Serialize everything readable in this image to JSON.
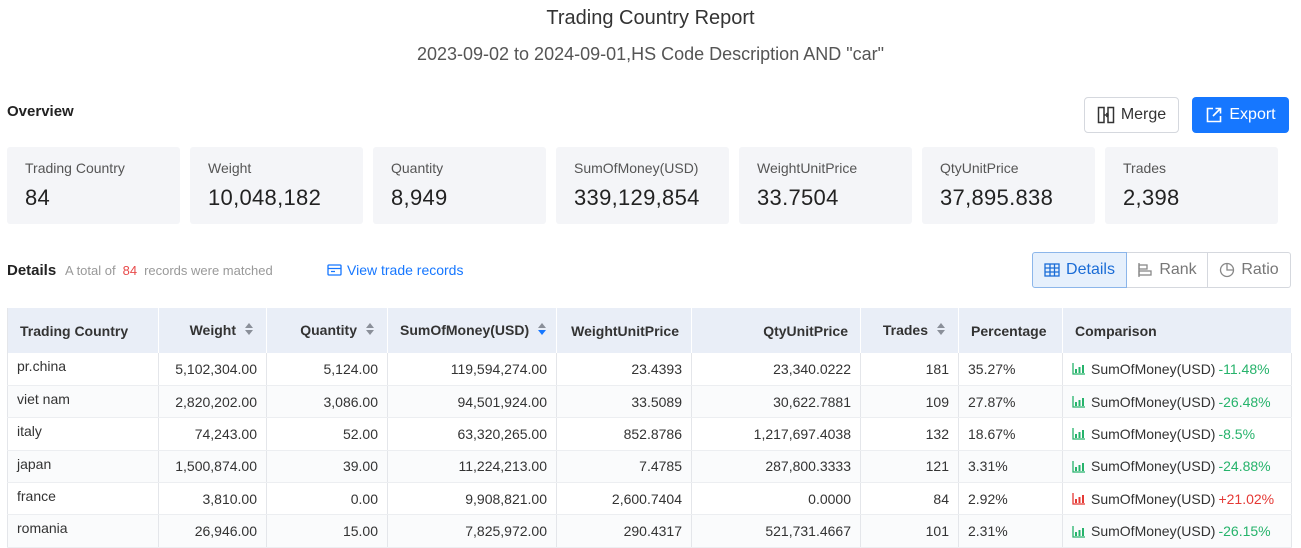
{
  "report": {
    "title": "Trading Country Report",
    "subtitle": "2023-09-02 to 2024-09-01,HS Code Description AND \"car\""
  },
  "overview": {
    "label": "Overview",
    "merge_label": "Merge",
    "export_label": "Export",
    "cards": [
      {
        "label": "Trading Country",
        "value": "84"
      },
      {
        "label": "Weight",
        "value": "10,048,182"
      },
      {
        "label": "Quantity",
        "value": "8,949"
      },
      {
        "label": "SumOfMoney(USD)",
        "value": "339,129,854"
      },
      {
        "label": "WeightUnitPrice",
        "value": "33.7504"
      },
      {
        "label": "QtyUnitPrice",
        "value": "37,895.838"
      },
      {
        "label": "Trades",
        "value": "2,398"
      }
    ]
  },
  "details": {
    "label": "Details",
    "total_prefix": "A total of",
    "total_count": "84",
    "total_suffix": "records were matched",
    "view_link": "View trade records",
    "views": [
      "Details",
      "Rank",
      "Ratio"
    ]
  },
  "table": {
    "headers": [
      "Trading Country",
      "Weight",
      "Quantity",
      "SumOfMoney(USD)",
      "WeightUnitPrice",
      "QtyUnitPrice",
      "Trades",
      "Percentage",
      "Comparison"
    ],
    "rows": [
      {
        "country": "pr.china",
        "weight": "5,102,304.00",
        "quantity": "5,124.00",
        "money": "119,594,274.00",
        "wup": "23.4393",
        "qup": "23,340.0222",
        "trades": "181",
        "pct": "35.27%",
        "cmp_label": "SumOfMoney(USD)",
        "cmp_value": "-11.48%",
        "cmp_dir": "down"
      },
      {
        "country": "viet nam",
        "weight": "2,820,202.00",
        "quantity": "3,086.00",
        "money": "94,501,924.00",
        "wup": "33.5089",
        "qup": "30,622.7881",
        "trades": "109",
        "pct": "27.87%",
        "cmp_label": "SumOfMoney(USD)",
        "cmp_value": "-26.48%",
        "cmp_dir": "down"
      },
      {
        "country": "italy",
        "weight": "74,243.00",
        "quantity": "52.00",
        "money": "63,320,265.00",
        "wup": "852.8786",
        "qup": "1,217,697.4038",
        "trades": "132",
        "pct": "18.67%",
        "cmp_label": "SumOfMoney(USD)",
        "cmp_value": "-8.5%",
        "cmp_dir": "down"
      },
      {
        "country": "japan",
        "weight": "1,500,874.00",
        "quantity": "39.00",
        "money": "11,224,213.00",
        "wup": "7.4785",
        "qup": "287,800.3333",
        "trades": "121",
        "pct": "3.31%",
        "cmp_label": "SumOfMoney(USD)",
        "cmp_value": "-24.88%",
        "cmp_dir": "down"
      },
      {
        "country": "france",
        "weight": "3,810.00",
        "quantity": "0.00",
        "money": "9,908,821.00",
        "wup": "2,600.7404",
        "qup": "0.0000",
        "trades": "84",
        "pct": "2.92%",
        "cmp_label": "SumOfMoney(USD)",
        "cmp_value": "+21.02%",
        "cmp_dir": "up"
      },
      {
        "country": "romania",
        "weight": "26,946.00",
        "quantity": "15.00",
        "money": "7,825,972.00",
        "wup": "290.4317",
        "qup": "521,731.4667",
        "trades": "101",
        "pct": "2.31%",
        "cmp_label": "SumOfMoney(USD)",
        "cmp_value": "-26.15%",
        "cmp_dir": "down"
      }
    ]
  },
  "colors": {
    "accent": "#1677ff",
    "trend_down": "#26b36b",
    "trend_up": "#e53935",
    "header_bg": "#e9eef7",
    "card_bg": "#f4f5f8"
  },
  "icons": {
    "merge": "merge-icon",
    "export": "export-icon",
    "view": "records-icon",
    "details": "table-icon",
    "rank": "bar-rank-icon",
    "ratio": "pie-icon",
    "sort": "sort-icon",
    "trend": "trend-chart-icon"
  }
}
